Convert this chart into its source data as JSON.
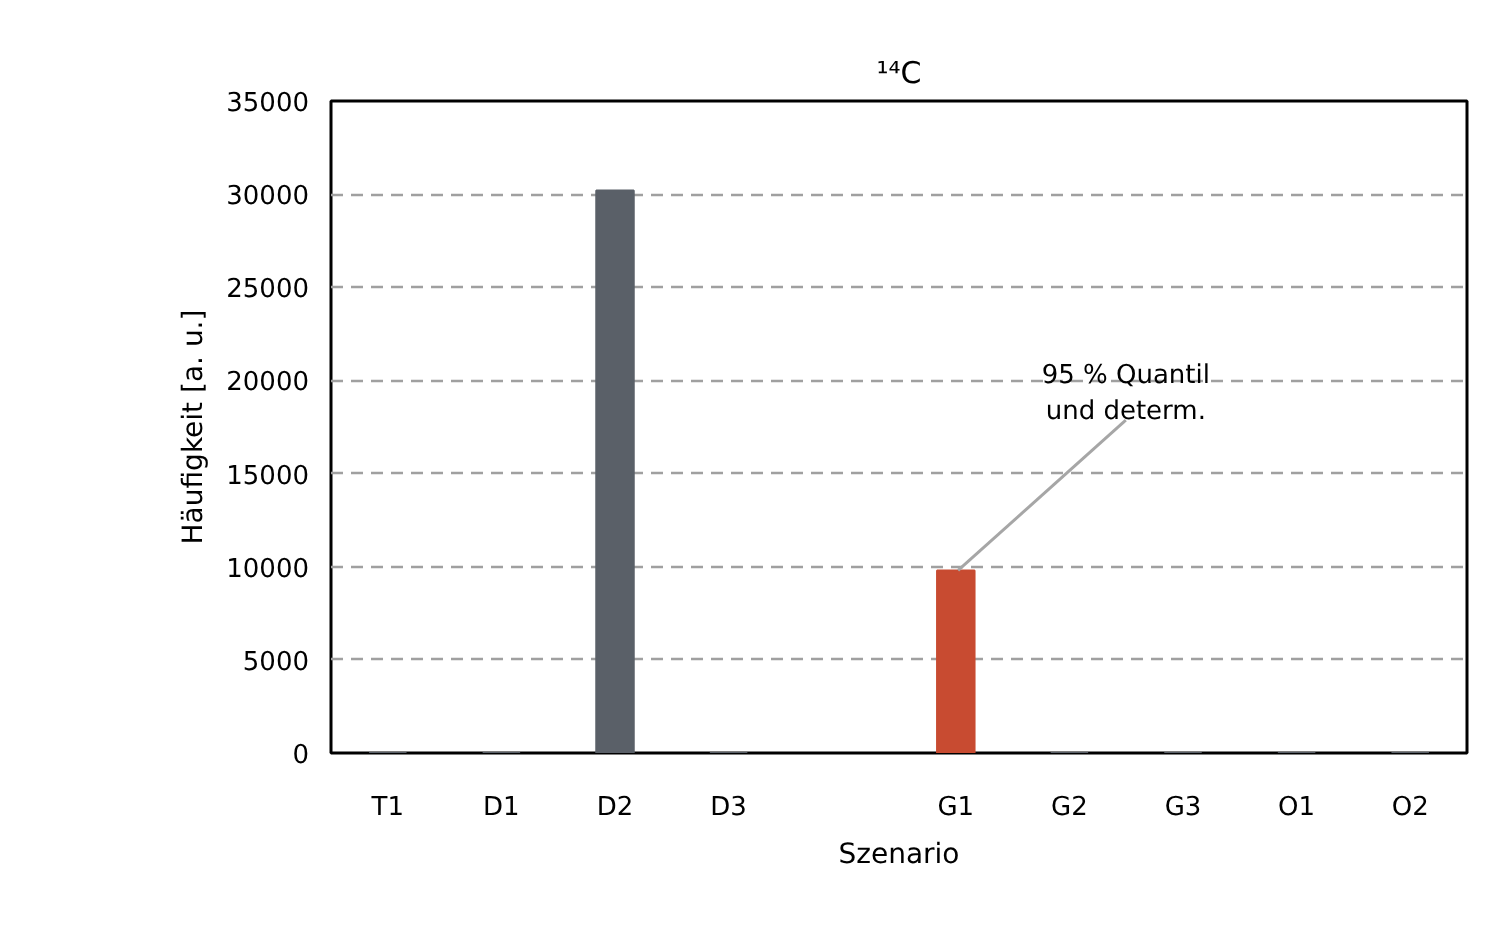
{
  "chart_data": {
    "type": "bar",
    "title": "¹⁴C",
    "xlabel": "Szenario",
    "ylabel": "Häufigkeit [a. u.]",
    "categories": [
      "T1",
      "D1",
      "D2",
      "D3",
      null,
      "G1",
      "G2",
      "G3",
      "O1",
      "O2"
    ],
    "values": [
      0,
      0,
      30200,
      0,
      null,
      9800,
      0,
      0,
      0,
      0
    ],
    "colors": [
      "#5a6068",
      "#5a6068",
      "#5a6068",
      "#5a6068",
      "#5a6068",
      "#c84b31",
      "#5a6068",
      "#5a6068",
      "#5a6068",
      "#5a6068"
    ],
    "ylim": [
      0,
      35000
    ],
    "yticks": [
      0,
      5000,
      10000,
      15000,
      20000,
      25000,
      30000,
      35000
    ],
    "grid": "y",
    "annotations": [
      {
        "text": "95 % Quantil\nund determ.",
        "x": "G1",
        "y": 9800
      }
    ]
  }
}
